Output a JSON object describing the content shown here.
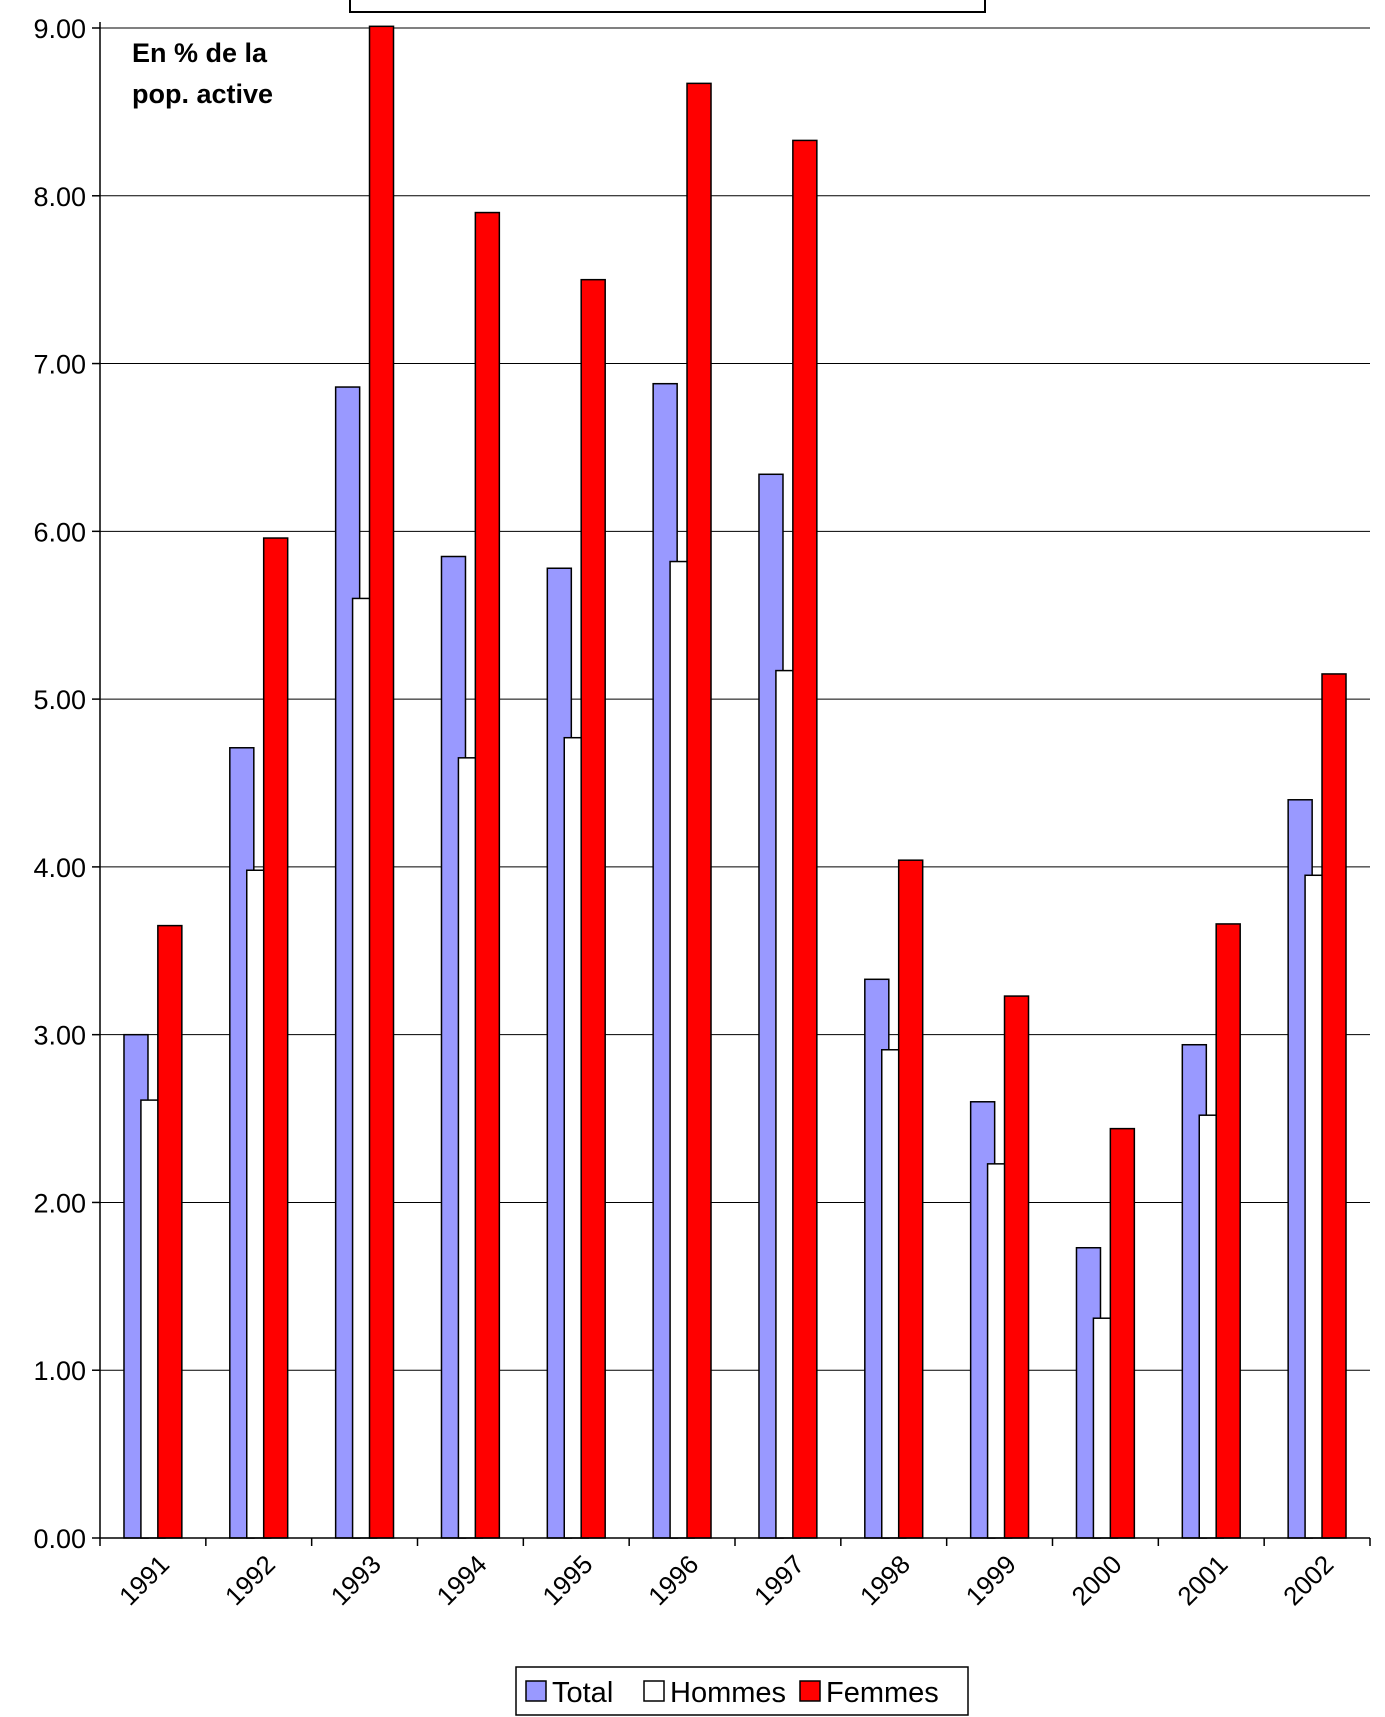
{
  "chart_data": {
    "type": "bar",
    "title": "",
    "annotation": [
      "En % de la",
      "pop. active"
    ],
    "xlabel": "",
    "ylabel": "",
    "ylim": [
      0,
      9
    ],
    "yticks": [
      "0.00",
      "1.00",
      "2.00",
      "3.00",
      "4.00",
      "5.00",
      "6.00",
      "7.00",
      "8.00",
      "9.00"
    ],
    "grid": "horizontal",
    "legend_position": "bottom",
    "categories": [
      "1991",
      "1992",
      "1993",
      "1994",
      "1995",
      "1996",
      "1997",
      "1998",
      "1999",
      "2000",
      "2001",
      "2002"
    ],
    "series": [
      {
        "name": "Total",
        "color": "#9999ff",
        "values": [
          3.0,
          4.71,
          6.86,
          5.85,
          5.78,
          6.88,
          6.34,
          3.33,
          2.6,
          1.73,
          2.94,
          4.4
        ]
      },
      {
        "name": "Hommes",
        "color": "#ffffff",
        "values": [
          2.61,
          3.98,
          5.6,
          4.65,
          4.77,
          5.82,
          5.17,
          2.91,
          2.23,
          1.31,
          2.52,
          3.95
        ]
      },
      {
        "name": "Femmes",
        "color": "#ff0000",
        "values": [
          3.65,
          5.96,
          9.01,
          7.9,
          7.5,
          8.67,
          8.33,
          4.04,
          3.23,
          2.44,
          3.66,
          5.15
        ]
      }
    ]
  }
}
